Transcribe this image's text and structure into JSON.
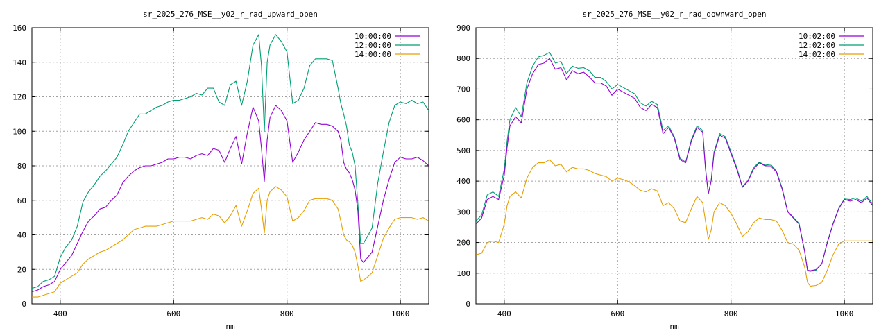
{
  "chart_data": [
    {
      "type": "line",
      "title": "sr_2025_276_MSE__y02_r_rad_upward_open",
      "xlabel": "nm",
      "ylabel": "",
      "xlim": [
        350,
        1050
      ],
      "ylim": [
        0,
        160
      ],
      "xticks": [
        400,
        600,
        800,
        1000
      ],
      "yticks": [
        0,
        20,
        40,
        60,
        80,
        100,
        120,
        140,
        160
      ],
      "grid": true,
      "legend_position": "top-right",
      "series": [
        {
          "name": "10:00:00",
          "color": "#9400d3",
          "x": [
            350,
            360,
            370,
            380,
            390,
            400,
            410,
            420,
            430,
            440,
            450,
            460,
            470,
            480,
            490,
            500,
            510,
            520,
            530,
            540,
            550,
            560,
            570,
            580,
            590,
            600,
            610,
            620,
            630,
            640,
            650,
            660,
            670,
            680,
            690,
            700,
            710,
            720,
            730,
            740,
            750,
            755,
            760,
            765,
            770,
            780,
            790,
            800,
            810,
            820,
            830,
            840,
            850,
            860,
            870,
            880,
            890,
            895,
            900,
            905,
            910,
            915,
            920,
            925,
            930,
            935,
            940,
            950,
            960,
            970,
            980,
            990,
            1000,
            1010,
            1020,
            1030,
            1040,
            1050
          ],
          "y": [
            7,
            8,
            10,
            11,
            13,
            20,
            24,
            28,
            35,
            42,
            48,
            51,
            55,
            56,
            60,
            63,
            70,
            74,
            77,
            79,
            80,
            80,
            81,
            82,
            84,
            84,
            85,
            85,
            84,
            86,
            87,
            86,
            90,
            89,
            82,
            90,
            97,
            81,
            99,
            114,
            106,
            90,
            71,
            95,
            108,
            115,
            112,
            106,
            82,
            88,
            95,
            100,
            105,
            104,
            104,
            103,
            100,
            95,
            82,
            78,
            76,
            72,
            66,
            54,
            26,
            24,
            26,
            30,
            45,
            60,
            72,
            82,
            85,
            84,
            84,
            85,
            83,
            80
          ]
        },
        {
          "name": "12:00:00",
          "color": "#009e73",
          "x": [
            350,
            360,
            370,
            380,
            390,
            400,
            410,
            420,
            430,
            440,
            450,
            460,
            470,
            480,
            490,
            500,
            510,
            520,
            530,
            540,
            550,
            560,
            570,
            580,
            590,
            600,
            610,
            620,
            630,
            640,
            650,
            660,
            670,
            680,
            690,
            700,
            710,
            720,
            730,
            740,
            750,
            755,
            760,
            765,
            770,
            780,
            790,
            800,
            810,
            820,
            830,
            840,
            850,
            860,
            870,
            880,
            890,
            895,
            900,
            905,
            910,
            915,
            920,
            925,
            930,
            935,
            940,
            950,
            960,
            970,
            980,
            990,
            1000,
            1010,
            1020,
            1030,
            1040,
            1050
          ],
          "y": [
            9,
            10,
            13,
            14,
            16,
            27,
            33,
            37,
            45,
            59,
            65,
            69,
            74,
            77,
            81,
            85,
            92,
            100,
            105,
            110,
            110,
            112,
            114,
            115,
            117,
            118,
            118,
            119,
            120,
            122,
            121,
            125,
            125,
            117,
            115,
            127,
            129,
            115,
            129,
            150,
            156,
            138,
            100,
            140,
            150,
            156,
            152,
            146,
            116,
            118,
            125,
            138,
            142,
            142,
            142,
            141,
            125,
            116,
            110,
            103,
            92,
            88,
            80,
            58,
            35,
            35,
            38,
            44,
            70,
            88,
            105,
            115,
            117,
            116,
            118,
            116,
            117,
            112
          ]
        },
        {
          "name": "14:00:00",
          "color": "#e69f00",
          "x": [
            350,
            360,
            370,
            380,
            390,
            400,
            410,
            420,
            430,
            440,
            450,
            460,
            470,
            480,
            490,
            500,
            510,
            520,
            530,
            540,
            550,
            560,
            570,
            580,
            590,
            600,
            610,
            620,
            630,
            640,
            650,
            660,
            670,
            680,
            690,
            700,
            710,
            720,
            730,
            740,
            750,
            755,
            760,
            765,
            770,
            780,
            790,
            800,
            810,
            820,
            830,
            840,
            850,
            860,
            870,
            880,
            890,
            895,
            900,
            905,
            910,
            915,
            920,
            925,
            930,
            935,
            940,
            950,
            960,
            970,
            980,
            990,
            1000,
            1010,
            1020,
            1030,
            1040,
            1050
          ],
          "y": [
            4,
            4,
            5,
            6,
            7,
            12,
            14,
            16,
            18,
            23,
            26,
            28,
            30,
            31,
            33,
            35,
            37,
            40,
            43,
            44,
            45,
            45,
            45,
            46,
            47,
            48,
            48,
            48,
            48,
            49,
            50,
            49,
            52,
            51,
            47,
            51,
            57,
            45,
            54,
            64,
            67,
            55,
            41,
            60,
            65,
            68,
            66,
            62,
            48,
            50,
            54,
            60,
            61,
            61,
            61,
            60,
            55,
            48,
            40,
            37,
            36,
            34,
            30,
            22,
            13,
            14,
            15,
            18,
            28,
            38,
            44,
            49,
            50,
            50,
            50,
            49,
            50,
            48
          ]
        }
      ]
    },
    {
      "type": "line",
      "title": "sr_2025_276_MSE__y02_r_rad_downward_open",
      "xlabel": "nm",
      "ylabel": "",
      "xlim": [
        350,
        1050
      ],
      "ylim": [
        0,
        900
      ],
      "xticks": [
        400,
        600,
        800,
        1000
      ],
      "yticks": [
        0,
        100,
        200,
        300,
        400,
        500,
        600,
        700,
        800,
        900
      ],
      "grid": true,
      "legend_position": "top-right",
      "series": [
        {
          "name": "10:02:00",
          "color": "#9400d3",
          "x": [
            350,
            360,
            370,
            380,
            390,
            400,
            405,
            410,
            420,
            430,
            440,
            450,
            460,
            470,
            480,
            490,
            500,
            510,
            520,
            530,
            540,
            550,
            560,
            570,
            580,
            590,
            600,
            610,
            620,
            630,
            640,
            650,
            660,
            670,
            680,
            690,
            700,
            710,
            720,
            730,
            740,
            750,
            755,
            760,
            765,
            770,
            780,
            790,
            800,
            810,
            820,
            830,
            840,
            850,
            860,
            870,
            880,
            890,
            900,
            910,
            920,
            930,
            935,
            940,
            950,
            960,
            970,
            980,
            990,
            1000,
            1010,
            1020,
            1030,
            1040,
            1050
          ],
          "y": [
            260,
            280,
            340,
            350,
            340,
            420,
            510,
            580,
            610,
            590,
            700,
            750,
            780,
            785,
            800,
            765,
            770,
            730,
            760,
            750,
            755,
            740,
            720,
            720,
            710,
            680,
            700,
            690,
            680,
            670,
            640,
            630,
            650,
            640,
            555,
            575,
            540,
            470,
            460,
            530,
            575,
            560,
            440,
            360,
            400,
            490,
            550,
            540,
            490,
            440,
            380,
            400,
            440,
            460,
            450,
            450,
            430,
            375,
            300,
            280,
            260,
            170,
            110,
            108,
            112,
            130,
            200,
            260,
            310,
            340,
            335,
            340,
            330,
            345,
            320
          ]
        },
        {
          "name": "12:02:00",
          "color": "#009e73",
          "x": [
            350,
            360,
            370,
            380,
            390,
            400,
            405,
            410,
            420,
            430,
            440,
            450,
            460,
            470,
            480,
            490,
            500,
            510,
            520,
            530,
            540,
            550,
            560,
            570,
            580,
            590,
            600,
            610,
            620,
            630,
            640,
            650,
            660,
            670,
            680,
            690,
            700,
            710,
            720,
            730,
            740,
            750,
            755,
            760,
            765,
            770,
            780,
            790,
            800,
            810,
            820,
            830,
            840,
            850,
            860,
            870,
            880,
            890,
            900,
            910,
            920,
            930,
            935,
            940,
            950,
            960,
            970,
            980,
            990,
            1000,
            1010,
            1020,
            1030,
            1040,
            1050
          ],
          "y": [
            270,
            290,
            355,
            365,
            350,
            440,
            530,
            600,
            640,
            610,
            720,
            775,
            805,
            810,
            820,
            785,
            790,
            750,
            775,
            768,
            770,
            760,
            738,
            738,
            725,
            700,
            715,
            705,
            695,
            685,
            655,
            645,
            660,
            650,
            565,
            580,
            545,
            475,
            462,
            535,
            580,
            565,
            445,
            358,
            402,
            495,
            555,
            545,
            495,
            445,
            382,
            402,
            445,
            462,
            452,
            455,
            433,
            378,
            302,
            282,
            262,
            172,
            108,
            106,
            110,
            130,
            202,
            262,
            312,
            342,
            340,
            345,
            335,
            350,
            325
          ]
        },
        {
          "name": "14:02:00",
          "color": "#e69f00",
          "x": [
            350,
            360,
            370,
            380,
            390,
            400,
            405,
            410,
            420,
            430,
            440,
            450,
            460,
            470,
            480,
            490,
            500,
            510,
            520,
            530,
            540,
            550,
            560,
            570,
            580,
            590,
            600,
            610,
            620,
            630,
            640,
            650,
            660,
            670,
            680,
            690,
            700,
            710,
            720,
            730,
            740,
            750,
            755,
            760,
            765,
            770,
            780,
            790,
            800,
            810,
            820,
            830,
            840,
            850,
            860,
            870,
            880,
            890,
            900,
            910,
            920,
            930,
            935,
            940,
            950,
            960,
            970,
            980,
            990,
            1000,
            1010,
            1020,
            1030,
            1040,
            1050
          ],
          "y": [
            160,
            165,
            200,
            205,
            200,
            260,
            320,
            350,
            365,
            345,
            410,
            445,
            460,
            460,
            470,
            450,
            455,
            430,
            445,
            440,
            440,
            435,
            425,
            420,
            415,
            400,
            410,
            405,
            398,
            385,
            370,
            365,
            375,
            368,
            320,
            330,
            310,
            270,
            265,
            310,
            350,
            330,
            270,
            210,
            240,
            300,
            330,
            320,
            295,
            260,
            220,
            235,
            265,
            280,
            275,
            275,
            270,
            240,
            200,
            195,
            175,
            120,
            70,
            58,
            60,
            70,
            110,
            160,
            195,
            205,
            205,
            205,
            205,
            205,
            205
          ]
        }
      ]
    }
  ]
}
